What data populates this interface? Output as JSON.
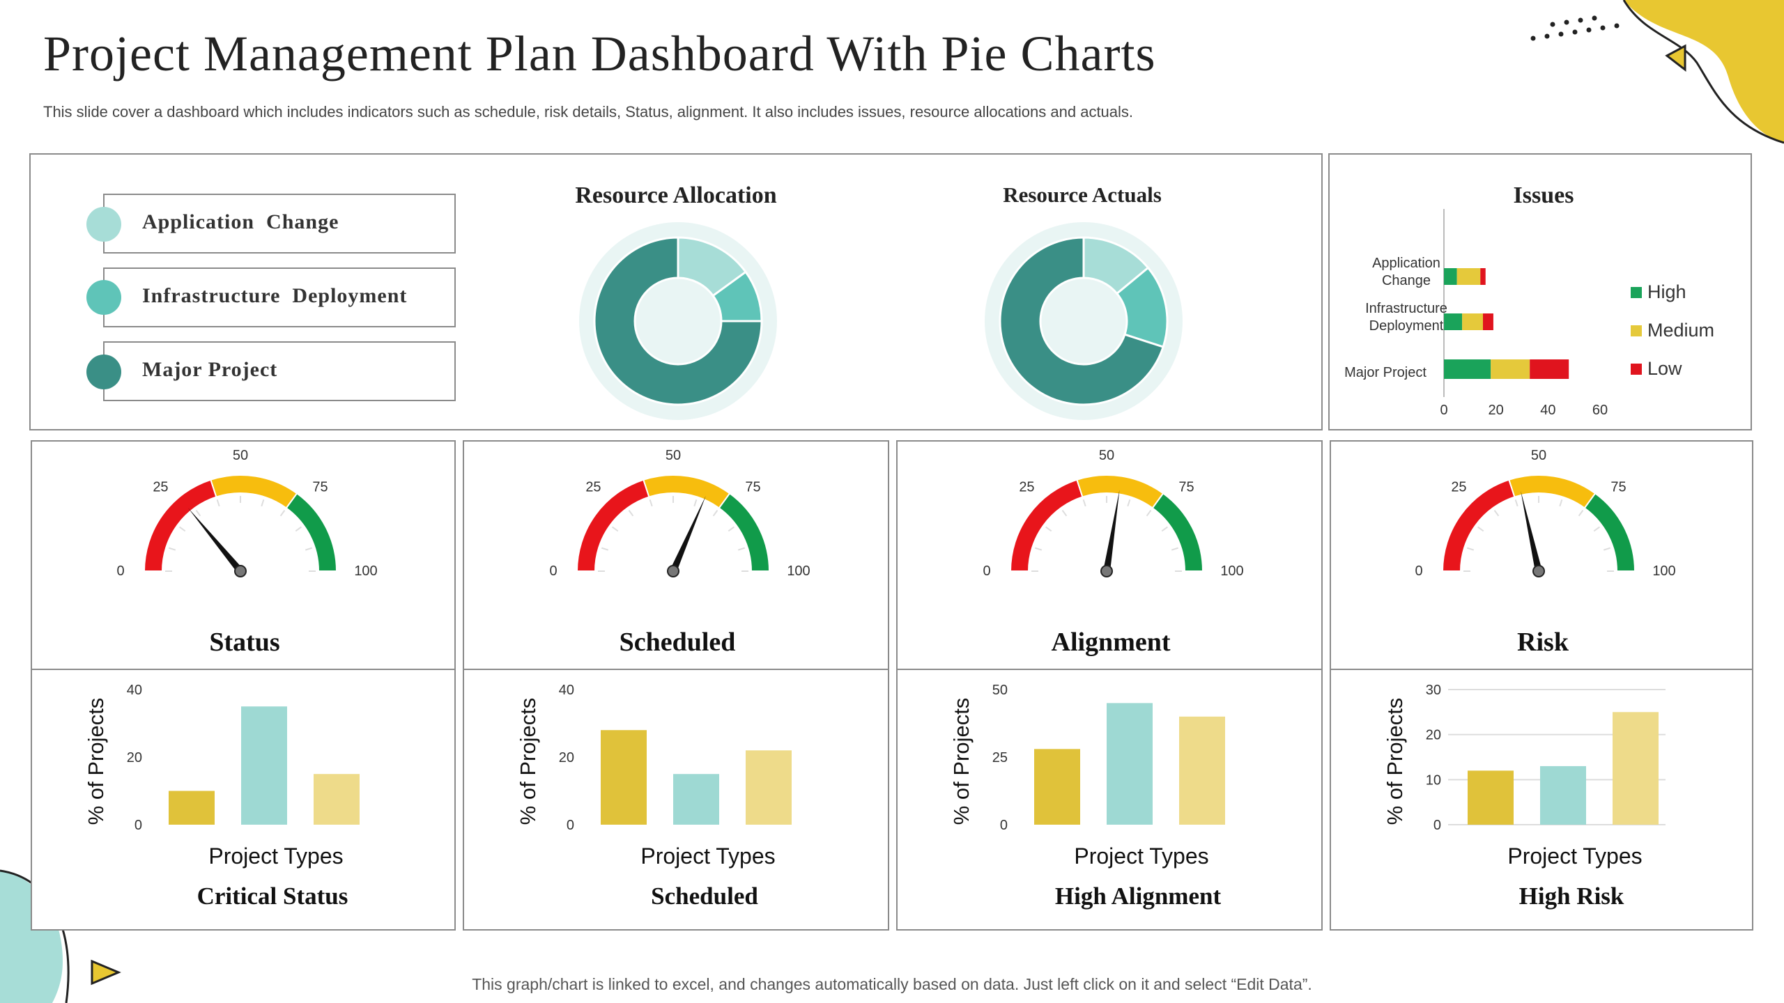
{
  "header": {
    "title": "Project Management Plan Dashboard With Pie Charts",
    "subtitle": "This slide cover a dashboard which includes indicators such as schedule, risk details, Status, alignment. It also includes issues, resource allocations and actuals."
  },
  "footer": {
    "note": "This graph/chart is linked to excel,  and changes automatically based on data. Just left click on it and select “Edit Data”."
  },
  "colors": {
    "teal_light": "#a7ddd7",
    "teal_mid": "#5fc4b8",
    "teal_dark": "#3a8f86",
    "gauge_red": "#e8151b",
    "gauge_yellow": "#f7bd0e",
    "gauge_green": "#119b4a",
    "bar_gold": "#e0c23a",
    "bar_teal": "#9ed9d3",
    "bar_cream": "#eedb8a",
    "issue_high": "#1aa35a",
    "issue_medium": "#e5c93b",
    "issue_low": "#e0141e",
    "accent_yellow": "#e8c731"
  },
  "legend": {
    "items": [
      {
        "label": "Application  Change",
        "color": "#a7ddd7"
      },
      {
        "label": "Infrastructure  Deployment",
        "color": "#5fc4b8"
      },
      {
        "label": "Major Project",
        "color": "#3a8f86"
      }
    ]
  },
  "chart_data": [
    {
      "type": "pie",
      "title": "Resource Allocation",
      "categories": [
        "Application  Change",
        "Infrastructure  Deployment",
        "Major Project"
      ],
      "values": [
        15,
        10,
        75
      ]
    },
    {
      "type": "pie",
      "title": "Resource Actuals",
      "categories": [
        "Application  Change",
        "Infrastructure  Deployment",
        "Major Project"
      ],
      "values": [
        14,
        16,
        70
      ]
    },
    {
      "type": "bar",
      "orientation": "horizontal",
      "stacked": true,
      "title": "Issues",
      "categories": [
        "Application\nChange",
        "Infrastructure\nDeployment",
        "Major Project"
      ],
      "series": [
        {
          "name": "High",
          "values": [
            5,
            7,
            18
          ]
        },
        {
          "name": "Medium",
          "values": [
            9,
            8,
            15
          ]
        },
        {
          "name": "Low",
          "values": [
            2,
            4,
            15
          ]
        }
      ],
      "xlim": [
        0,
        60
      ],
      "xticks": [
        0,
        20,
        40,
        60
      ],
      "legend": "right"
    },
    {
      "type": "gauge",
      "title": "Status",
      "value": 28,
      "range": [
        0,
        100
      ],
      "ticks": [
        0,
        25,
        50,
        75,
        100
      ]
    },
    {
      "type": "gauge",
      "title": "Scheduled",
      "value": 63,
      "range": [
        0,
        100
      ],
      "ticks": [
        0,
        25,
        50,
        75,
        100
      ]
    },
    {
      "type": "gauge",
      "title": "Alignment",
      "value": 55,
      "range": [
        0,
        100
      ],
      "ticks": [
        0,
        25,
        50,
        75,
        100
      ]
    },
    {
      "type": "gauge",
      "title": "Risk",
      "value": 43,
      "range": [
        0,
        100
      ],
      "ticks": [
        0,
        25,
        50,
        75,
        100
      ]
    },
    {
      "type": "bar",
      "title": "Critical Status",
      "xlabel": "Project Types",
      "ylabel": "% of Projects",
      "values": [
        10,
        35,
        15
      ],
      "ylim": [
        0,
        40
      ],
      "yticks": [
        0,
        20,
        40
      ]
    },
    {
      "type": "bar",
      "title": "Scheduled",
      "xlabel": "Project Types",
      "ylabel": "% of Projects",
      "values": [
        28,
        15,
        22
      ],
      "ylim": [
        0,
        40
      ],
      "yticks": [
        0,
        20,
        40
      ]
    },
    {
      "type": "bar",
      "title": "High Alignment",
      "xlabel": "Project Types",
      "ylabel": "% of Projects",
      "values": [
        28,
        45,
        40
      ],
      "ylim": [
        0,
        50
      ],
      "yticks": [
        0,
        25,
        50
      ]
    },
    {
      "type": "bar",
      "title": "High Risk",
      "xlabel": "Project Types",
      "ylabel": "% of Projects",
      "values": [
        12,
        13,
        25
      ],
      "ylim": [
        0,
        30
      ],
      "yticks": [
        0,
        10,
        20,
        30
      ],
      "grid": true
    }
  ]
}
